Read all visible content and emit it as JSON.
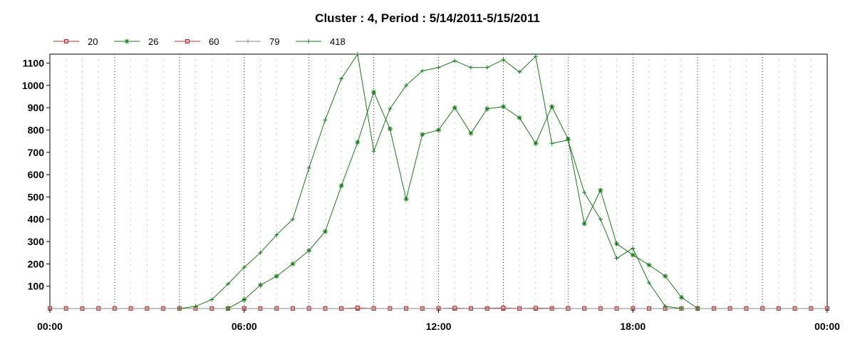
{
  "chart_data": {
    "type": "line",
    "title": "Cluster : 4, Period : 5/14/2011-5/15/2011",
    "xlabel": "",
    "ylabel": "",
    "xlim": [
      0,
      24
    ],
    "ylim": [
      0,
      1140
    ],
    "x_ticks": [
      {
        "value": 0,
        "label": "00:00"
      },
      {
        "value": 6,
        "label": "06:00"
      },
      {
        "value": 12,
        "label": "12:00"
      },
      {
        "value": 18,
        "label": "18:00"
      },
      {
        "value": 24,
        "label": "00:00"
      }
    ],
    "y_ticks": [
      100,
      200,
      300,
      400,
      500,
      600,
      700,
      800,
      900,
      1000,
      1100
    ],
    "grid": {
      "vertical_minor_step_hours": 0.5,
      "vertical_major_step_hours": 2
    },
    "legend_position": "top-left",
    "series": [
      {
        "name": "20",
        "color": "#b03030",
        "marker": "square",
        "x": [
          0,
          0.5,
          1,
          1.5,
          2,
          2.5,
          3,
          3.5,
          4,
          4.5,
          5,
          5.5,
          6,
          6.5,
          7,
          7.5,
          8,
          8.5,
          9,
          9.5,
          10,
          10.5,
          11,
          11.5,
          12,
          12.5,
          13,
          13.5,
          14,
          14.5,
          15,
          15.5,
          16,
          16.5,
          17,
          17.5,
          18,
          18.5,
          19,
          19.5,
          20,
          20.5,
          21,
          21.5,
          22,
          22.5,
          23,
          23.5,
          24
        ],
        "y": [
          0,
          0,
          0,
          0,
          0,
          0,
          0,
          0,
          0,
          0,
          0,
          0,
          0,
          0,
          0,
          0,
          0,
          0,
          0,
          0,
          0,
          0,
          0,
          0,
          0,
          0,
          0,
          0,
          0,
          0,
          0,
          0,
          0,
          0,
          0,
          0,
          0,
          0,
          0,
          0,
          0,
          0,
          0,
          0,
          0,
          0,
          0,
          0,
          0
        ]
      },
      {
        "name": "26",
        "color": "#1a7a1a",
        "marker": "star",
        "x": [
          5.5,
          6,
          6.5,
          7,
          7.5,
          8,
          8.5,
          9,
          9.5,
          10,
          10.5,
          11,
          11.5,
          12,
          12.5,
          13,
          13.5,
          14,
          14.5,
          15,
          15.5,
          16,
          16.5,
          17,
          17.5,
          18,
          18.5,
          19,
          19.5,
          20
        ],
        "y": [
          0,
          40,
          105,
          145,
          200,
          260,
          345,
          550,
          745,
          970,
          805,
          490,
          780,
          800,
          900,
          785,
          895,
          905,
          855,
          740,
          905,
          760,
          380,
          530,
          290,
          240,
          195,
          145,
          50,
          0
        ]
      },
      {
        "name": "60",
        "color": "#b03030",
        "marker": "square",
        "x": [
          0,
          6,
          9,
          9.5,
          10,
          12,
          12.5,
          13,
          14,
          14.5,
          15,
          16,
          24
        ],
        "y": [
          0,
          0,
          0,
          3,
          0,
          0,
          2,
          0,
          3,
          0,
          2,
          0,
          0
        ]
      },
      {
        "name": "79",
        "color": "#888888",
        "marker": "plus",
        "x": [
          0,
          24
        ],
        "y": [
          0,
          0
        ]
      },
      {
        "name": "418",
        "color": "#1a7a1a",
        "marker": "plus",
        "x": [
          4,
          4.5,
          5,
          5.5,
          6,
          6.5,
          7,
          7.5,
          8,
          8.5,
          9,
          9.5,
          10,
          10.5,
          11,
          11.5,
          12,
          12.5,
          13,
          13.5,
          14,
          14.5,
          15,
          15.5,
          16,
          16.5,
          17,
          17.5,
          18,
          18.5,
          19,
          19.5
        ],
        "y": [
          0,
          10,
          40,
          110,
          185,
          250,
          330,
          400,
          630,
          845,
          1030,
          1140,
          705,
          895,
          1000,
          1065,
          1080,
          1110,
          1080,
          1080,
          1115,
          1060,
          1130,
          740,
          755,
          520,
          400,
          225,
          270,
          115,
          10,
          0
        ]
      }
    ]
  }
}
